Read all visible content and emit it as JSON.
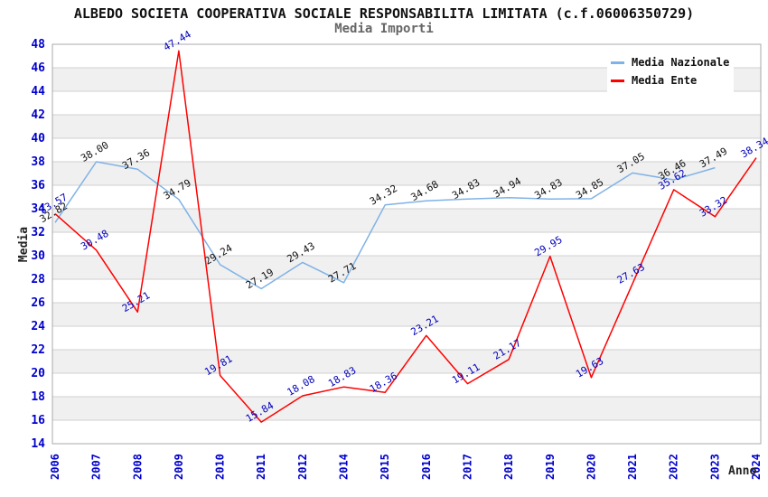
{
  "title": "ALBEDO SOCIETA COOPERATIVA SOCIALE RESPONSABILITA LIMITATA (c.f.06006350729)",
  "subtitle": "Media Importi",
  "colors": {
    "nazionale_line": "#7fb2e6",
    "ente_line": "#ff0000",
    "tick_label": "#0000cc",
    "ente_value_label": "#0000bb",
    "nazionale_value_label": "#111111",
    "band_white": "#ffffff",
    "band_gray": "#f0f0f0",
    "gridline": "#d0d0d0",
    "plot_border": "#aaaaaa"
  },
  "chart_data": {
    "type": "line",
    "title": "ALBEDO SOCIETA COOPERATIVA SOCIALE RESPONSABILITA LIMITATA (c.f.06006350729)",
    "subtitle": "Media Importi",
    "xlabel": "Anno",
    "ylabel": "Media",
    "ylim": [
      14,
      48
    ],
    "ytick_step": 2,
    "grid": true,
    "background_bands": true,
    "legend_position": "top-right",
    "categories": [
      "2006",
      "2007",
      "2008",
      "2009",
      "2010",
      "2011",
      "2012",
      "2014",
      "2015",
      "2016",
      "2017",
      "2018",
      "2019",
      "2020",
      "2021",
      "2022",
      "2023",
      "2024"
    ],
    "series": [
      {
        "name": "Media Nazionale",
        "color": "#7fb2e6",
        "label_color": "#111111",
        "values": [
          32.82,
          38.0,
          37.36,
          34.79,
          29.24,
          27.19,
          29.43,
          27.71,
          34.32,
          34.68,
          34.83,
          34.94,
          34.83,
          34.85,
          37.05,
          36.46,
          37.49,
          null
        ]
      },
      {
        "name": "Media Ente",
        "color": "#ff0000",
        "label_color": "#0000bb",
        "values": [
          33.57,
          30.48,
          25.21,
          47.44,
          19.81,
          15.84,
          18.08,
          18.83,
          18.36,
          23.21,
          19.11,
          21.17,
          29.95,
          19.63,
          27.63,
          35.62,
          33.32,
          38.34
        ]
      }
    ]
  }
}
